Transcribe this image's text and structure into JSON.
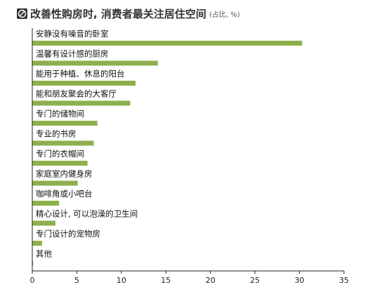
{
  "colors": {
    "bar": "#8db04c",
    "axis": "#222222",
    "title": "#333333"
  },
  "header": {
    "logo_icon": "leaf-badge-icon",
    "title": "改善性购房时, 消费者最关注居住空间",
    "subtitle": "(占比, %)"
  },
  "chart_data": {
    "type": "bar",
    "orientation": "horizontal",
    "title": "改善性购房时, 消费者最关注居住空间",
    "subtitle": "(占比, %)",
    "categories": [
      "安静没有噪音的卧室",
      "温馨有设计感的厨房",
      "能用于种植、休息的阳台",
      "能和朋友聚会的大客厅",
      "专门的储物间",
      "专业的书房",
      "专门的衣帽间",
      "家庭室内健身房",
      "咖啡角或小吧台",
      "精心设计, 可以泡澡的卫生间",
      "专门设计的宠物房",
      "其他"
    ],
    "values": [
      30.3,
      14.1,
      11.6,
      11.0,
      7.3,
      6.9,
      6.2,
      5.1,
      3.0,
      2.6,
      1.1,
      0.1
    ],
    "xlim": [
      0,
      35
    ],
    "xticks": [
      0,
      5,
      10,
      15,
      20,
      25,
      30,
      35
    ],
    "grid": false,
    "legend": "none"
  }
}
